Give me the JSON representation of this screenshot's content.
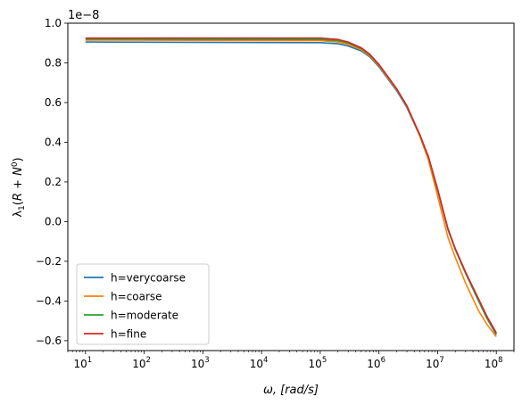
{
  "chart_data": {
    "type": "line",
    "xscale": "log",
    "xlabel": "ω, [rad/s]",
    "ylabel": "λ1(R + N0)",
    "offset_text": "1e−8",
    "xlim": [
      5,
      200000000
    ],
    "ylim": [
      -0.65,
      1.0
    ],
    "x_ticks": [
      10,
      100,
      1000,
      10000,
      100000,
      1000000,
      10000000,
      100000000
    ],
    "x_tick_labels": [
      {
        "base": "10",
        "exp": "1"
      },
      {
        "base": "10",
        "exp": "2"
      },
      {
        "base": "10",
        "exp": "3"
      },
      {
        "base": "10",
        "exp": "4"
      },
      {
        "base": "10",
        "exp": "5"
      },
      {
        "base": "10",
        "exp": "6"
      },
      {
        "base": "10",
        "exp": "7"
      },
      {
        "base": "10",
        "exp": "8"
      }
    ],
    "y_ticks": [
      -0.6,
      -0.4,
      -0.2,
      0.0,
      0.2,
      0.4,
      0.6,
      0.8,
      1.0
    ],
    "y_tick_labels": [
      "−0.6",
      "−0.4",
      "−0.2",
      "0.0",
      "0.2",
      "0.4",
      "0.6",
      "0.8",
      "1.0"
    ],
    "grid": false,
    "legend_position": "lower-left",
    "x": [
      10,
      100000,
      200000,
      300000,
      500000,
      700000,
      1000000,
      1500000,
      2000000,
      3000000,
      5000000,
      7000000,
      10000000,
      15000000,
      20000000,
      30000000,
      50000000,
      70000000,
      100000000
    ],
    "series": [
      {
        "name": "h=verycoarse",
        "color": "#1f77b4",
        "values": [
          0.905,
          0.902,
          0.896,
          0.885,
          0.86,
          0.83,
          0.78,
          0.71,
          0.66,
          0.575,
          0.43,
          0.32,
          0.16,
          -0.04,
          -0.14,
          -0.26,
          -0.4,
          -0.49,
          -0.57
        ]
      },
      {
        "name": "h=coarse",
        "color": "#ff7f0e",
        "values": [
          0.915,
          0.912,
          0.905,
          0.893,
          0.866,
          0.835,
          0.785,
          0.715,
          0.665,
          0.58,
          0.43,
          0.31,
          0.13,
          -0.08,
          -0.18,
          -0.31,
          -0.45,
          -0.52,
          -0.58
        ]
      },
      {
        "name": "h=moderate",
        "color": "#2ca02c",
        "values": [
          0.92,
          0.918,
          0.912,
          0.9,
          0.872,
          0.84,
          0.79,
          0.72,
          0.668,
          0.582,
          0.435,
          0.325,
          0.16,
          -0.04,
          -0.14,
          -0.26,
          -0.4,
          -0.49,
          -0.565
        ]
      },
      {
        "name": "h=fine",
        "color": "#d62728",
        "values": [
          0.925,
          0.925,
          0.918,
          0.905,
          0.876,
          0.843,
          0.792,
          0.722,
          0.67,
          0.584,
          0.437,
          0.327,
          0.165,
          -0.035,
          -0.135,
          -0.255,
          -0.39,
          -0.48,
          -0.56
        ]
      }
    ]
  }
}
